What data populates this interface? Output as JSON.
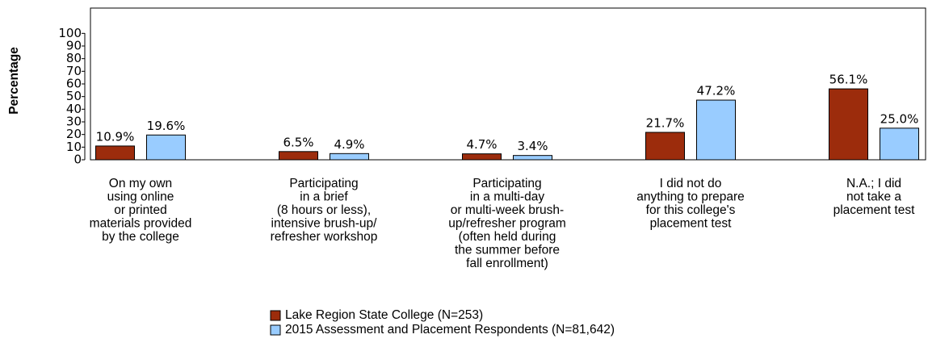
{
  "chart_data": {
    "type": "bar",
    "y_label": "Percentage",
    "categories": [
      [
        "On my own",
        "using online",
        "or printed",
        "materials provided",
        "by the college"
      ],
      [
        "Participating",
        "in a brief",
        "(8 hours or less),",
        "intensive brush-up/",
        "refresher workshop"
      ],
      [
        "Participating",
        "in a multi-day",
        "or multi-week brush-",
        "up/refresher program",
        "(often held during",
        "the summer before",
        "fall enrollment)"
      ],
      [
        "I did not do",
        "anything to prepare",
        "for this college's",
        "placement test"
      ],
      [
        "N.A.; I did",
        "not take a",
        "placement test"
      ]
    ],
    "series": [
      {
        "name": "Lake Region State College (N=253)",
        "color": "#9c2c0c",
        "values": [
          10.9,
          6.5,
          4.7,
          21.7,
          56.1
        ],
        "value_labels": [
          "10.9%",
          "6.5%",
          "4.7%",
          "21.7%",
          "56.1%"
        ]
      },
      {
        "name": "2015 Assessment and Placement Respondents (N=81,642)",
        "color": "#99ccff",
        "values": [
          19.6,
          4.9,
          3.4,
          47.2,
          25.0
        ],
        "value_labels": [
          "19.6%",
          "4.9%",
          "3.4%",
          "47.2%",
          "25.0%"
        ]
      }
    ],
    "ylim": [
      0,
      120
    ],
    "yticks": [
      0,
      10,
      20,
      30,
      40,
      50,
      60,
      70,
      80,
      90,
      100
    ]
  }
}
